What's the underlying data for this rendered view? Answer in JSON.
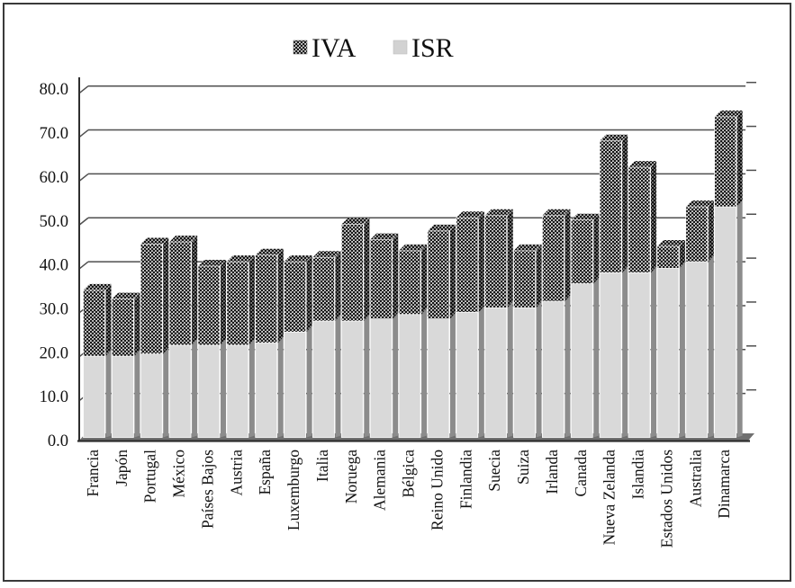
{
  "figure": {
    "background": "#ffffff",
    "frame_color": "#3a3a3a"
  },
  "chart_data": {
    "type": "bar",
    "subtype": "stacked-3d-columns",
    "stacked": true,
    "title": "",
    "xlabel": "",
    "ylabel": "",
    "ylim": [
      0,
      80
    ],
    "ytick_step": 10,
    "ytick_labels": [
      "0.0",
      "10.0",
      "20.0",
      "30.0",
      "40.0",
      "50.0",
      "60.0",
      "70.0",
      "80.0"
    ],
    "grid": true,
    "legend_position": "top-center",
    "categories": [
      "Francia",
      "Japón",
      "Portugal",
      "México",
      "Países Bajos",
      "Austria",
      "España",
      "Luxemburgo",
      "Italia",
      "Noruega",
      "Alemania",
      "Bélgica",
      "Reino Unido",
      "Finlandia",
      "Suecia",
      "Suiza",
      "Irlanda",
      "Canada",
      "Nueva Zelanda",
      "Islandia",
      "Estados Unidos",
      "Australia",
      "Dinamarca"
    ],
    "series": [
      {
        "name": "IVA",
        "stack_order": "top",
        "style": "dark-dot-pattern",
        "values": [
          15.0,
          13.0,
          25.0,
          23.5,
          18.0,
          19.0,
          20.0,
          16.0,
          14.5,
          22.0,
          18.0,
          14.5,
          20.0,
          21.5,
          21.0,
          13.0,
          19.5,
          14.5,
          30.0,
          24.0,
          5.0,
          12.5,
          20.5
        ]
      },
      {
        "name": "ISR",
        "stack_order": "bottom",
        "style": "light-gray",
        "values": [
          18.5,
          18.5,
          19.0,
          21.0,
          21.0,
          21.0,
          21.5,
          24.0,
          26.5,
          26.5,
          27.0,
          28.0,
          27.0,
          28.5,
          29.5,
          29.5,
          31.0,
          35.0,
          37.5,
          37.5,
          38.5,
          40.0,
          52.5
        ]
      }
    ],
    "colors": {
      "isr_front": "#d9d9d9",
      "isr_side": "#8c8c8c",
      "isr_top": "#e9e9e9",
      "iva_dot": "#161616",
      "iva_dot_bg": "#d6d6d6",
      "gridline": "#4f4f4f",
      "axis": "#2e2e2e",
      "floor": "#707070",
      "text": "#111111"
    }
  }
}
